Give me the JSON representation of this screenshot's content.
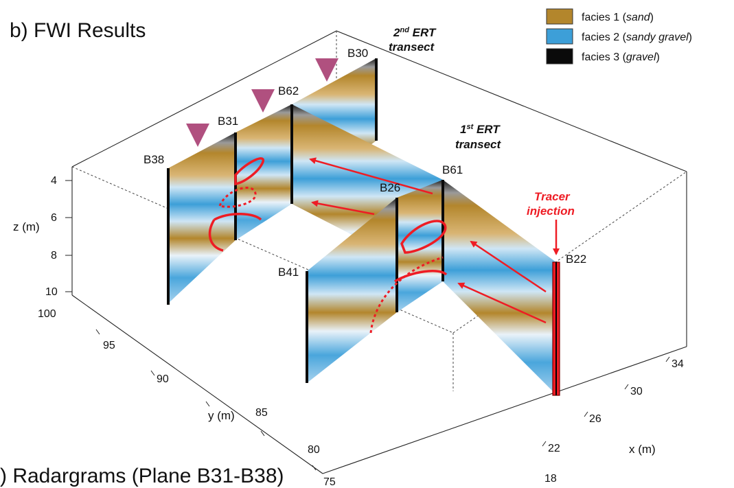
{
  "figure": {
    "title": "b) FWI Results",
    "bottom_caption": ") Radargrams (Plane B31-B38)"
  },
  "legend": {
    "items": [
      {
        "label": "facies 1 (",
        "emph": "sand",
        "close": ")",
        "color": "#b3862c"
      },
      {
        "label": "facies 2 (",
        "emph": "sandy gravel",
        "close": ")",
        "color": "#3d9fd8"
      },
      {
        "label": "facies 3 (",
        "emph": "gravel",
        "close": ")",
        "color": "#0a0a0a"
      }
    ]
  },
  "axes": {
    "z_label": "z (m)",
    "y_label": "y (m)",
    "x_label": "x (m)",
    "z_ticks": [
      "4",
      "6",
      "8",
      "10"
    ],
    "y_ticks": [
      "100",
      "95",
      "90",
      "85",
      "80",
      "75"
    ],
    "x_ticks": [
      "18",
      "22",
      "26",
      "30",
      "34"
    ]
  },
  "boreholes": [
    "B30",
    "B62",
    "B31",
    "B38",
    "B61",
    "B26",
    "B41",
    "B22"
  ],
  "annotations": {
    "ert2_line1_base": "2",
    "ert2_line1_sup": "nd",
    "ert2_line1_rest": " ERT",
    "ert2_line2": "transect",
    "ert1_line1_base": "1",
    "ert1_line1_sup": "st",
    "ert1_line1_rest": " ERT",
    "ert1_line2": "transect",
    "tracer_line1": "Tracer",
    "tracer_line2": "injection"
  },
  "colors": {
    "sand": "#b3862c",
    "sandy_gravel": "#3d9fd8",
    "gravel": "#0a0a0a",
    "light_blue": "#cfe6f5",
    "tracer_red": "#ee1c24",
    "marker_purple": "#b0507f"
  }
}
